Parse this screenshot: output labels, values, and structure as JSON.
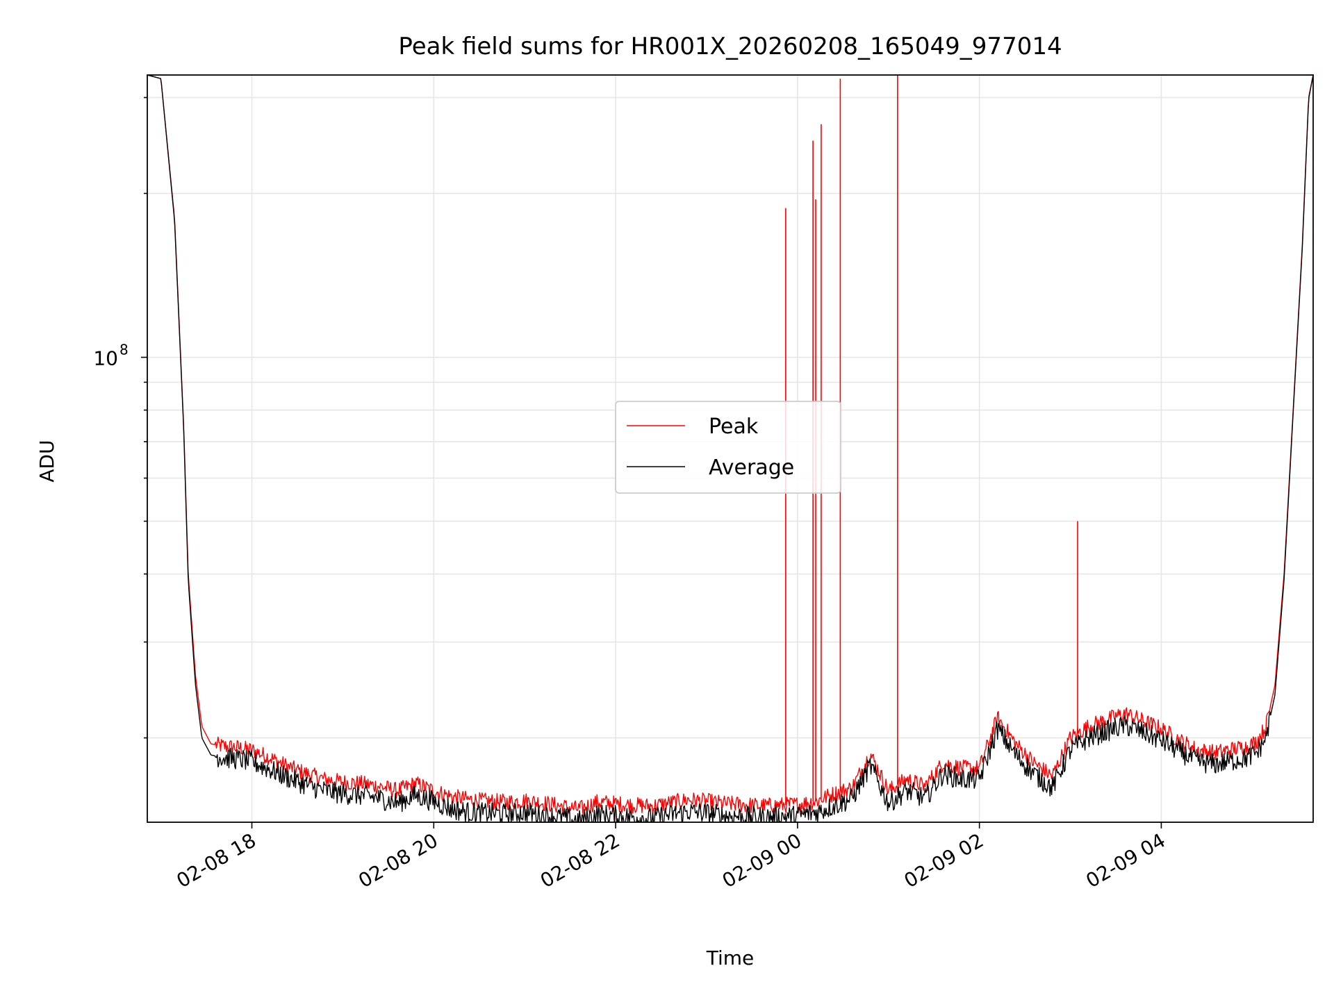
{
  "chart_data": {
    "type": "line",
    "title": "Peak field sums for HR001X_20260208_165049_977014",
    "xlabel": "Time",
    "ylabel": "ADU",
    "yscale": "log",
    "ylim": [
      14000000,
      330000000
    ],
    "xlim_hours": [
      16.85,
      29.67
    ],
    "grid": true,
    "legend_loc": "center",
    "x_ticks": [
      {
        "hour": 18,
        "label": "02-08 18"
      },
      {
        "hour": 20,
        "label": "02-08 20"
      },
      {
        "hour": 22,
        "label": "02-08 22"
      },
      {
        "hour": 24,
        "label": "02-09 00"
      },
      {
        "hour": 26,
        "label": "02-09 02"
      },
      {
        "hour": 28,
        "label": "02-09 04"
      }
    ],
    "y_major_tick": {
      "value": 100000000,
      "base": "10",
      "exponent": "8"
    },
    "y_minor_ticks": [
      20000000,
      30000000,
      40000000,
      50000000,
      60000000,
      70000000,
      80000000,
      90000000,
      200000000,
      300000000
    ],
    "colors": {
      "peak": "#ff0000",
      "average": "#000000"
    },
    "series": [
      {
        "name": "Peak",
        "color": "#ff0000",
        "x_hours": [
          16.85,
          17.0,
          17.02,
          17.15,
          17.25,
          17.3,
          17.38,
          17.45,
          17.55,
          17.7,
          17.85,
          18.0,
          18.2,
          18.4,
          18.6,
          18.8,
          19.0,
          19.2,
          19.4,
          19.6,
          19.8,
          20.0,
          20.2,
          20.4,
          20.6,
          20.8,
          21.0,
          21.2,
          21.4,
          21.6,
          21.8,
          22.0,
          22.2,
          22.4,
          22.6,
          22.8,
          23.0,
          23.2,
          23.4,
          23.6,
          23.8,
          24.0,
          24.2,
          24.4,
          24.6,
          24.8,
          25.0,
          25.2,
          25.4,
          25.6,
          25.8,
          26.0,
          26.2,
          26.4,
          26.6,
          26.8,
          27.0,
          27.2,
          27.4,
          27.6,
          27.8,
          28.0,
          28.2,
          28.4,
          28.6,
          28.8,
          28.95,
          29.05,
          29.15,
          29.25,
          29.35,
          29.45,
          29.55,
          29.62,
          29.67
        ],
        "values": [
          330000000,
          325000000,
          300000000,
          180000000,
          75000000,
          40000000,
          26000000,
          21000000,
          19500000,
          19300000,
          19200000,
          19000000,
          18400000,
          17700000,
          17200000,
          16800000,
          16600000,
          16500000,
          16300000,
          16000000,
          16500000,
          16000000,
          15600000,
          15400000,
          15300000,
          15250000,
          15350000,
          15200000,
          15000000,
          14800000,
          15250000,
          15150000,
          15050000,
          15000000,
          15200000,
          15400000,
          15300000,
          15150000,
          15100000,
          15000000,
          15050000,
          15100000,
          15300000,
          15800000,
          16200000,
          18700000,
          16000000,
          16800000,
          16300000,
          18000000,
          17600000,
          17600000,
          21800000,
          19500000,
          18000000,
          17000000,
          20000000,
          21000000,
          21600000,
          22200000,
          21500000,
          20800000,
          19800000,
          19000000,
          18800000,
          19100000,
          19300000,
          19700000,
          21000000,
          25000000,
          40000000,
          80000000,
          160000000,
          300000000,
          330000000
        ],
        "spikes": [
          {
            "x_hour": 23.87,
            "value": 188000000
          },
          {
            "x_hour": 24.17,
            "value": 250000000
          },
          {
            "x_hour": 24.2,
            "value": 195000000
          },
          {
            "x_hour": 24.26,
            "value": 268000000
          },
          {
            "x_hour": 24.47,
            "value": 325000000
          },
          {
            "x_hour": 25.1,
            "value": 330000000
          },
          {
            "x_hour": 27.08,
            "value": 50000000
          }
        ]
      },
      {
        "name": "Average",
        "color": "#000000",
        "x_hours": [
          16.85,
          17.0,
          17.02,
          17.15,
          17.25,
          17.3,
          17.38,
          17.45,
          17.55,
          17.7,
          17.85,
          18.0,
          18.2,
          18.4,
          18.6,
          18.8,
          19.0,
          19.2,
          19.4,
          19.6,
          19.8,
          20.0,
          20.2,
          20.4,
          20.6,
          20.8,
          21.0,
          21.2,
          21.4,
          21.6,
          21.8,
          22.0,
          22.2,
          22.4,
          22.6,
          22.8,
          23.0,
          23.2,
          23.4,
          23.6,
          23.8,
          24.0,
          24.2,
          24.4,
          24.6,
          24.8,
          25.0,
          25.2,
          25.4,
          25.6,
          25.8,
          26.0,
          26.2,
          26.4,
          26.6,
          26.8,
          27.0,
          27.2,
          27.4,
          27.6,
          27.8,
          28.0,
          28.2,
          28.4,
          28.6,
          28.8,
          28.95,
          29.05,
          29.15,
          29.25,
          29.35,
          29.45,
          29.55,
          29.62,
          29.67
        ],
        "values": [
          330000000,
          325000000,
          300000000,
          178000000,
          74000000,
          39000000,
          25000000,
          20000000,
          18600000,
          18400000,
          18300000,
          18100000,
          17500000,
          16900000,
          16400000,
          16000000,
          15800000,
          15700000,
          15500000,
          15200000,
          15700000,
          15300000,
          14800000,
          14600000,
          14550000,
          14500000,
          14600000,
          14450000,
          14300000,
          14100000,
          14500000,
          14400000,
          14300000,
          14250000,
          14450000,
          14650000,
          14550000,
          14400000,
          14350000,
          14300000,
          14350000,
          14400000,
          14600000,
          15000000,
          15500000,
          17800000,
          15200000,
          16000000,
          15500000,
          17200000,
          16800000,
          16800000,
          20800000,
          18600000,
          17200000,
          16200000,
          19000000,
          20000000,
          20600000,
          21100000,
          20500000,
          19800000,
          18900000,
          18100000,
          17900000,
          18200000,
          18400000,
          18800000,
          20000000,
          24000000,
          39000000,
          79000000,
          158000000,
          298000000,
          330000000
        ]
      }
    ]
  }
}
